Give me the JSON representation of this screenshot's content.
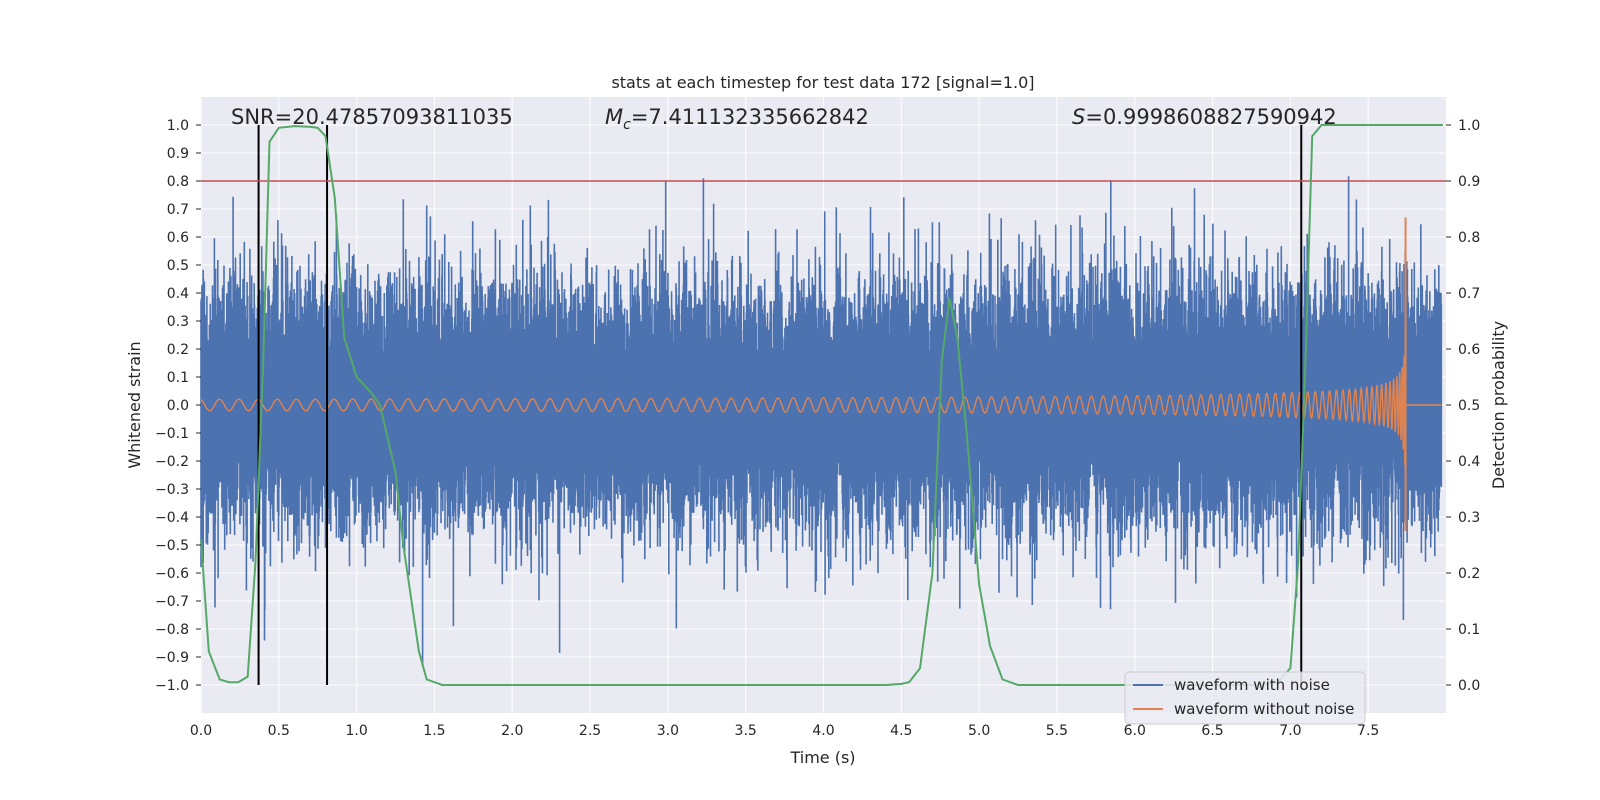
{
  "chart_data": {
    "type": "line",
    "title": "stats at each timestep for test data 172 [signal=1.0]",
    "xlabel": "Time (s)",
    "ylabel": "Whitened strain",
    "y2label": "Detection probability",
    "xlim": [
      0.0,
      8.0
    ],
    "ylim": [
      -1.1,
      1.1
    ],
    "y2lim": [
      -0.05,
      1.05
    ],
    "xticks": [
      "0.0",
      "0.5",
      "1.0",
      "1.5",
      "2.0",
      "2.5",
      "3.0",
      "3.5",
      "4.0",
      "4.5",
      "5.0",
      "5.5",
      "6.0",
      "6.5",
      "7.0",
      "7.5"
    ],
    "yticks": [
      "1.0",
      "0.9",
      "0.8",
      "0.7",
      "0.6",
      "0.5",
      "0.4",
      "0.3",
      "0.2",
      "0.1",
      "0.0",
      "−0.1",
      "−0.2",
      "−0.3",
      "−0.4",
      "−0.5",
      "−0.6",
      "−0.7",
      "−0.8",
      "−0.9",
      "−1.0"
    ],
    "y2ticks": [
      "1.0",
      "0.9",
      "0.8",
      "0.7",
      "0.6",
      "0.5",
      "0.4",
      "0.3",
      "0.2",
      "0.1",
      "0.0"
    ],
    "annotations": {
      "snr": "SNR=20.47857093811035",
      "mc_symbol": "M",
      "mc_sub": "c",
      "mc_value": "=7.411132335662842",
      "s_symbol": "S",
      "s_value": "=0.9998608827590942"
    },
    "legend": {
      "position": "lower-right",
      "entries": [
        "waveform with noise",
        "waveform without noise"
      ]
    },
    "colors": {
      "noisy": "#4c72b0",
      "clean": "#dd8452",
      "probability": "#55a868",
      "threshold": "#c44e52",
      "marker": "#000000",
      "plot_bg": "#eaeaf2"
    },
    "threshold": 0.9,
    "vertical_markers": [
      0.37,
      0.81,
      7.07
    ],
    "waveform_with_noise": {
      "description": "broadband whitened noise approx ±0.5 with spikes",
      "envelope": [
        0.5,
        0.75
      ]
    },
    "waveform_without_noise": {
      "chirp_start_amp": 0.02,
      "peak_time": 7.74,
      "peak_amp": 0.67,
      "min_amp": -0.45
    },
    "probability": {
      "t": [
        0.0,
        0.05,
        0.12,
        0.18,
        0.24,
        0.3,
        0.35,
        0.4,
        0.44,
        0.5,
        0.6,
        0.7,
        0.75,
        0.8,
        0.86,
        0.92,
        1.0,
        1.1,
        1.15,
        1.25,
        1.3,
        1.4,
        1.45,
        1.55,
        1.7,
        2.0,
        3.0,
        4.0,
        4.4,
        4.5,
        4.55,
        4.62,
        4.7,
        4.76,
        4.81,
        4.86,
        4.92,
        5.0,
        5.07,
        5.15,
        5.25,
        5.5,
        6.0,
        6.5,
        6.8,
        6.92,
        7.0,
        7.05,
        7.1,
        7.14,
        7.2,
        7.4,
        7.6,
        7.8,
        7.98
      ],
      "p": [
        0.26,
        0.06,
        0.01,
        0.005,
        0.005,
        0.015,
        0.22,
        0.58,
        0.97,
        0.995,
        0.998,
        0.997,
        0.995,
        0.98,
        0.87,
        0.62,
        0.55,
        0.52,
        0.5,
        0.38,
        0.25,
        0.06,
        0.01,
        0.0,
        0.0,
        0.0,
        0.0,
        0.0,
        0.0,
        0.002,
        0.005,
        0.03,
        0.2,
        0.58,
        0.69,
        0.62,
        0.45,
        0.18,
        0.07,
        0.01,
        0.0,
        0.0,
        0.0,
        0.0,
        0.0,
        0.005,
        0.03,
        0.22,
        0.6,
        0.98,
        1.0,
        1.0,
        1.0,
        1.0,
        1.0
      ]
    }
  }
}
